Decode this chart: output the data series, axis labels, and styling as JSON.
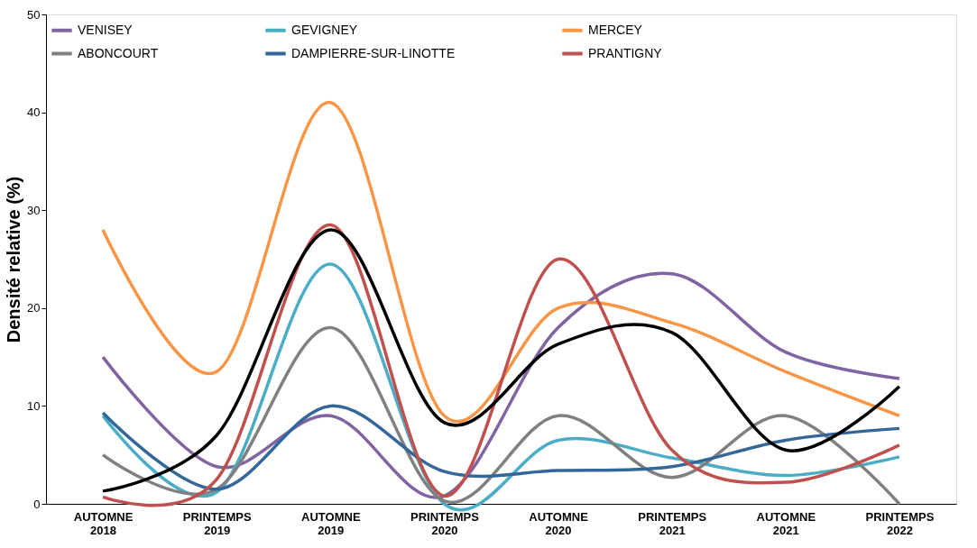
{
  "chart_data": {
    "type": "line",
    "ylabel": "Densité relative (%)",
    "categories": [
      "AUTOMNE 2018",
      "PRINTEMPS 2019",
      "AUTOMNE 2019",
      "PRINTEMPS 2020",
      "AUTOMNE 2020",
      "PRINTEMPS 2021",
      "AUTOMNE 2021",
      "PRINTEMPS 2022"
    ],
    "ylim": [
      0,
      50
    ],
    "yticks": [
      0,
      10,
      20,
      30,
      40,
      50
    ],
    "grid": false,
    "legend": "top",
    "marker": "none",
    "line_style": "solid",
    "series": [
      {
        "name": "VENISEY",
        "color": "#8064a2",
        "values": [
          15,
          3.8,
          9,
          0.8,
          18,
          23.5,
          15.5,
          12.8
        ]
      },
      {
        "name": "GEVIGNEY",
        "color": "#4bacc6",
        "values": [
          9,
          1.2,
          24.5,
          0,
          6.5,
          4.7,
          2.9,
          4.8
        ]
      },
      {
        "name": "MERCEY",
        "color": "#f79646",
        "values": [
          28,
          13.5,
          41,
          9,
          20,
          18.5,
          13.5,
          9
        ]
      },
      {
        "name": "ABONCOURT",
        "color": "#808080",
        "values": [
          5,
          1.5,
          18,
          0.3,
          9,
          2.7,
          9,
          0
        ]
      },
      {
        "name": "DAMPIERRE-SUR-LINOTTE",
        "color": "#336699",
        "values": [
          9.3,
          1.5,
          10,
          3.3,
          3.4,
          3.8,
          6.5,
          7.7
        ]
      },
      {
        "name": "PRANTIGNY",
        "color": "#c0504d",
        "values": [
          0.7,
          2.5,
          28.5,
          0.8,
          25,
          5.5,
          2.2,
          6
        ]
      },
      {
        "color": "#000000",
        "values": [
          1.3,
          7,
          28,
          8.3,
          16.3,
          17.5,
          5.5,
          12
        ]
      }
    ]
  }
}
